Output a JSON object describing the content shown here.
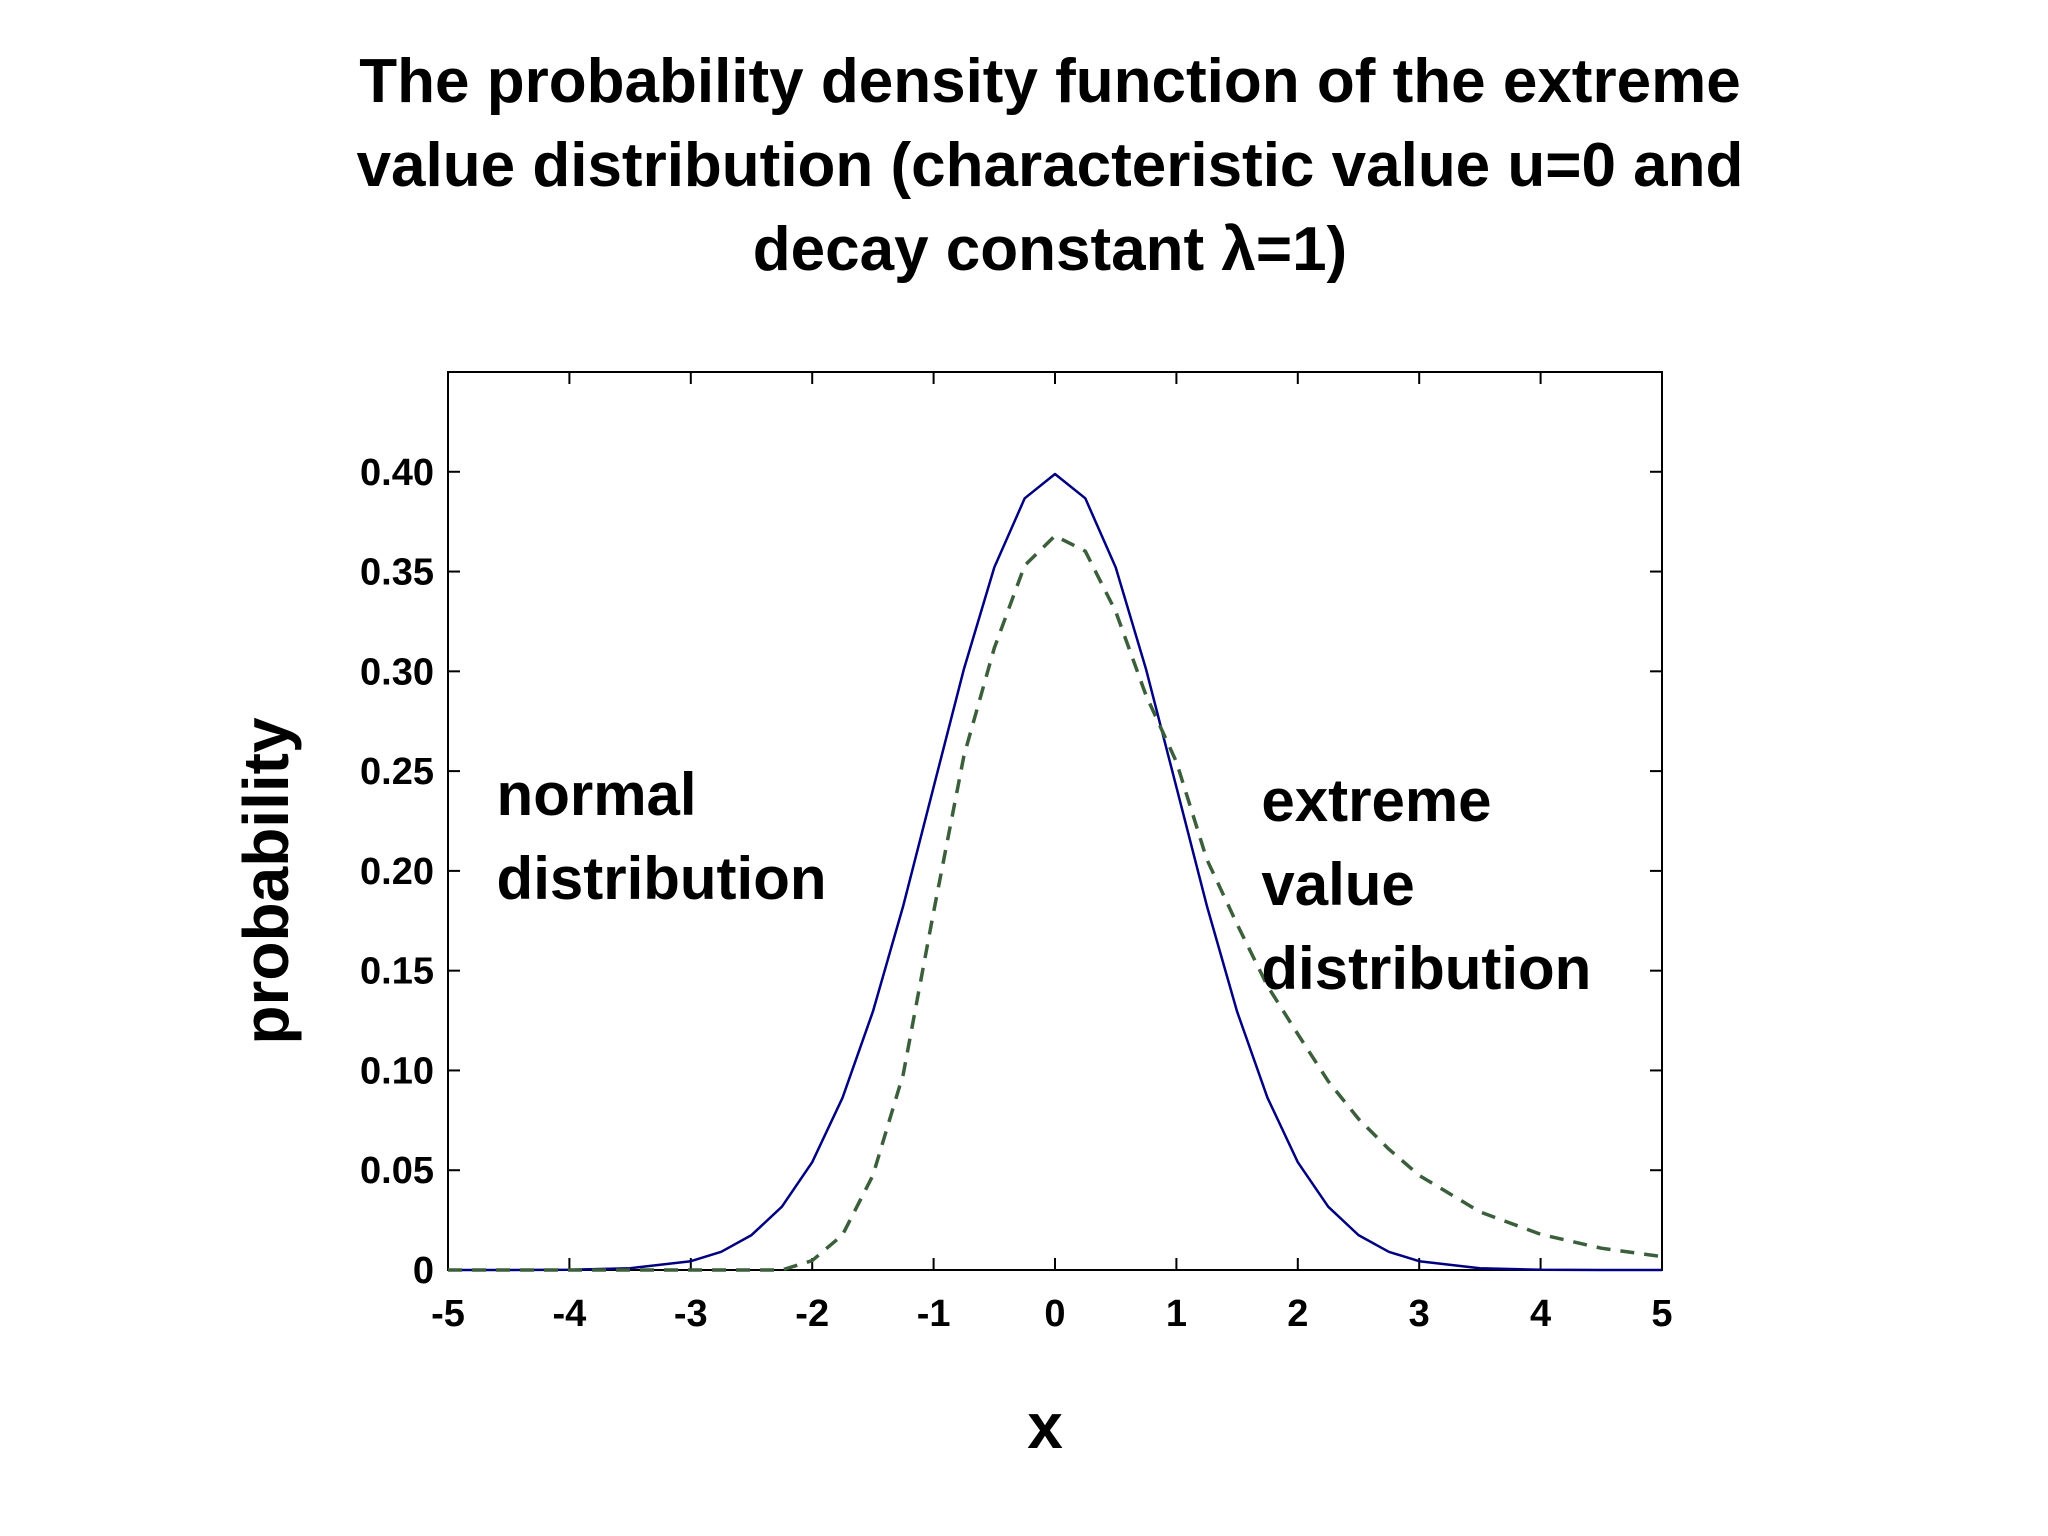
{
  "chart_data": {
    "type": "line",
    "title_lines": [
      "The probability density function of the extreme",
      "value distribution (characteristic value u=0 and",
      "decay constant λ=1)"
    ],
    "xlabel": "x",
    "ylabel": "probability",
    "xlim": [
      -5,
      5
    ],
    "ylim": [
      0,
      0.45
    ],
    "xticks": [
      "-5",
      "-4",
      "-3",
      "-2",
      "-1",
      "0",
      "1",
      "2",
      "3",
      "4",
      "5"
    ],
    "yticks": [
      "0",
      "0.05",
      "0.10",
      "0.15",
      "0.20",
      "0.25",
      "0.30",
      "0.35",
      "0.40"
    ],
    "grid": false,
    "series": [
      {
        "name": "normal distribution",
        "color": "#000080",
        "style": "solid",
        "x": [
          -5,
          -4.5,
          -4,
          -3.5,
          -3,
          -2.75,
          -2.5,
          -2.25,
          -2,
          -1.75,
          -1.5,
          -1.25,
          -1,
          -0.75,
          -0.5,
          -0.25,
          0,
          0.25,
          0.5,
          0.75,
          1,
          1.25,
          1.5,
          1.75,
          2,
          2.25,
          2.5,
          2.75,
          3,
          3.5,
          4,
          4.5,
          5
        ],
        "y": [
          0.0,
          0.0,
          0.0001,
          0.0009,
          0.0044,
          0.0091,
          0.0175,
          0.0317,
          0.054,
          0.0863,
          0.1295,
          0.1826,
          0.242,
          0.3011,
          0.3521,
          0.3867,
          0.3989,
          0.3867,
          0.3521,
          0.3011,
          0.242,
          0.1826,
          0.1295,
          0.0863,
          0.054,
          0.0317,
          0.0175,
          0.0091,
          0.0044,
          0.0009,
          0.0001,
          0.0,
          0.0
        ]
      },
      {
        "name": "extreme value distribution",
        "color": "#3a5f3a",
        "style": "dashed",
        "x": [
          -5,
          -4,
          -3,
          -2.5,
          -2.25,
          -2,
          -1.75,
          -1.5,
          -1.25,
          -1,
          -0.75,
          -0.5,
          -0.25,
          0,
          0.25,
          0.5,
          0.75,
          1,
          1.25,
          1.5,
          1.75,
          2,
          2.25,
          2.5,
          2.75,
          3,
          3.5,
          4,
          4.5,
          5
        ],
        "y": [
          0.0,
          0.0,
          0.0,
          0.0,
          0.0,
          0.0047,
          0.0176,
          0.0474,
          0.0982,
          0.1794,
          0.2576,
          0.3117,
          0.3531,
          0.3679,
          0.3602,
          0.33,
          0.288,
          0.2546,
          0.2058,
          0.1733,
          0.1423,
          0.1182,
          0.0946,
          0.0757,
          0.0606,
          0.0474,
          0.0291,
          0.0179,
          0.0109,
          0.0067
        ]
      }
    ],
    "annotations": [
      {
        "lines": [
          "normal",
          "distribution"
        ],
        "x": -4.6,
        "y": 0.228
      },
      {
        "lines": [
          "extreme",
          "value",
          "distribution"
        ],
        "x": 1.7,
        "y": 0.225
      }
    ]
  }
}
